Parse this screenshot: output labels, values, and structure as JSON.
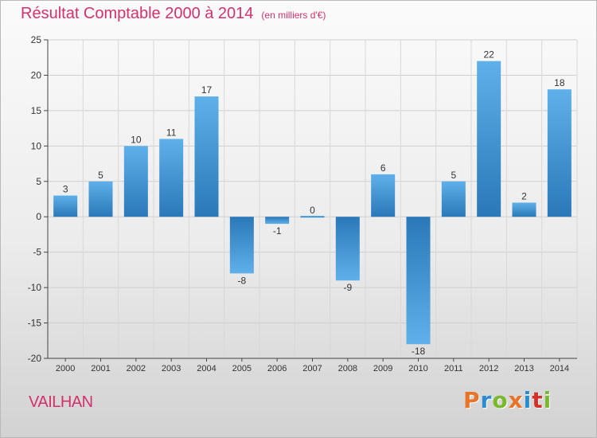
{
  "header": {
    "title": "Résultat Comptable 2000 à 2014",
    "subtitle": "(en milliers d'€)"
  },
  "footer": {
    "commune": "VAILHAN",
    "logo_text": "Proxiti",
    "logo_colors": [
      "#e8742a",
      "#2a8dd4",
      "#7ab82e",
      "#e8742a",
      "#2a8dd4",
      "#d4302a",
      "#7ab82e"
    ]
  },
  "chart_data": {
    "type": "bar",
    "title": "Résultat Comptable 2000 à 2014",
    "subtitle": "(en milliers d'€)",
    "categories": [
      "2000",
      "2001",
      "2002",
      "2003",
      "2004",
      "2005",
      "2006",
      "2007",
      "2008",
      "2009",
      "2010",
      "2011",
      "2012",
      "2013",
      "2014"
    ],
    "values": [
      3,
      5,
      10,
      11,
      17,
      -8,
      -1,
      0,
      -9,
      6,
      -18,
      5,
      22,
      2,
      18
    ],
    "data_labels": [
      "3",
      "5",
      "10",
      "11",
      "17",
      "-8",
      "-1",
      "0",
      "-9",
      "6",
      "-18",
      "5",
      "22",
      "2",
      "18"
    ],
    "ylim": [
      -20,
      25
    ],
    "yticks": [
      -20,
      -15,
      -10,
      -5,
      0,
      5,
      10,
      15,
      20,
      25
    ],
    "ytick_labels": [
      "-20",
      "-15",
      "-10",
      "-5",
      "0",
      "5",
      "10",
      "15",
      "20",
      "25"
    ],
    "xlabel": "",
    "ylabel": "",
    "grid": true,
    "bar_color": "#3a93d6",
    "bar_color_light": "#5fb0ea",
    "bar_color_dark": "#2a78b8"
  }
}
